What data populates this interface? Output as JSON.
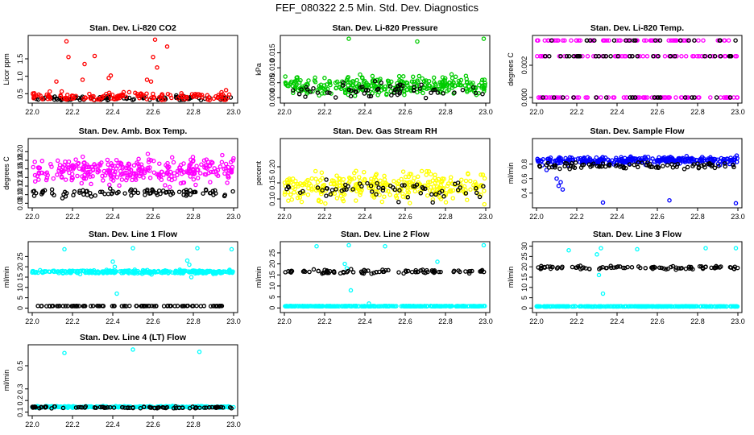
{
  "figure_title": "FEF_080322  2.5 Min. Std. Dev. Diagnostics",
  "colors": {
    "red": "#ff0000",
    "green": "#00cc00",
    "magenta": "#ff00ff",
    "yellow": "#ffff00",
    "blue": "#0000ff",
    "cyan": "#00ffff",
    "black": "#000000"
  },
  "chart_data": [
    {
      "type": "scatter",
      "title": "Stan. Dev. Li-820 CO2",
      "xlabel": "",
      "ylabel": "Licor ppm",
      "xlim": [
        22.0,
        23.0
      ],
      "ylim": [
        0.3,
        2.1
      ],
      "xticks": [
        "22.0",
        "22.2",
        "22.4",
        "22.6",
        "22.8",
        "23.0"
      ],
      "yticks": [
        "0.5",
        "1.0",
        "1.5"
      ],
      "series": [
        {
          "name": "black",
          "color": "#000000",
          "base": 0.36,
          "spread": 0.08,
          "n": 90
        },
        {
          "name": "red",
          "color": "#ff0000",
          "base": 0.42,
          "spread": 0.12,
          "n": 140,
          "outliers": [
            [
              22.17,
              2.0
            ],
            [
              22.18,
              1.55
            ],
            [
              22.26,
              1.35
            ],
            [
              22.31,
              1.58
            ],
            [
              22.39,
              1.02
            ],
            [
              22.6,
              1.55
            ],
            [
              22.61,
              2.05
            ],
            [
              22.62,
              1.25
            ],
            [
              22.67,
              1.85
            ],
            [
              22.38,
              0.95
            ],
            [
              22.12,
              0.85
            ],
            [
              22.25,
              0.9
            ],
            [
              22.57,
              0.9
            ],
            [
              22.59,
              0.85
            ]
          ]
        }
      ]
    },
    {
      "type": "scatter",
      "title": "Stan. Dev. Li-820 Pressure",
      "xlabel": "",
      "ylabel": "kPa",
      "xlim": [
        22.0,
        23.0
      ],
      "ylim": [
        -0.001,
        0.02
      ],
      "xticks": [
        "22.0",
        "22.2",
        "22.4",
        "22.6",
        "22.8",
        "23.0"
      ],
      "yticks": [
        "0.000",
        "0.005",
        "0.010",
        "0.015"
      ],
      "series": [
        {
          "name": "green",
          "color": "#00cc00",
          "base": 0.004,
          "spread": 0.003,
          "n": 300,
          "outliers": [
            [
              22.32,
              0.0197
            ],
            [
              22.66,
              0.0188
            ],
            [
              22.99,
              0.0197
            ]
          ]
        },
        {
          "name": "black",
          "color": "#000000",
          "base": 0.0025,
          "spread": 0.0025,
          "n": 60
        }
      ]
    },
    {
      "type": "scatter",
      "title": "Stan. Dev. Li-820 Temp.",
      "xlabel": "",
      "ylabel": "degrees C",
      "xlim": [
        22.0,
        23.0
      ],
      "ylim": [
        -0.0002,
        0.0037
      ],
      "xticks": [
        "22.0",
        "22.2",
        "22.4",
        "22.6",
        "22.8",
        "23.0"
      ],
      "yticks": [
        "0.000",
        "0.002"
      ],
      "series": [
        {
          "name": "magenta",
          "color": "#ff00ff",
          "levels": [
            0.0,
            0.00256,
            0.00354
          ],
          "n": 220
        },
        {
          "name": "black",
          "color": "#000000",
          "levels": [
            0.0,
            0.00256,
            0.00354
          ],
          "n": 70
        }
      ]
    },
    {
      "type": "scatter",
      "title": "Stan. Dev. Amb. Box Temp.",
      "xlabel": "",
      "ylabel": "degrees C",
      "xlim": [
        22.0,
        23.0
      ],
      "ylim": [
        0.075,
        0.225
      ],
      "xticks": [
        "22.0",
        "22.2",
        "22.4",
        "22.6",
        "22.8",
        "23.0"
      ],
      "yticks": [
        "0.08",
        "0.10",
        "0.12",
        "0.14",
        "0.16",
        "0.18",
        "0.20"
      ],
      "series": [
        {
          "name": "magenta",
          "color": "#ff00ff",
          "base": 0.155,
          "spread": 0.03,
          "n": 320
        },
        {
          "name": "black",
          "color": "#000000",
          "base": 0.105,
          "spread": 0.01,
          "n": 90
        }
      ]
    },
    {
      "type": "scatter",
      "title": "Stan. Dev. Gas Stream RH",
      "xlabel": "",
      "ylabel": "percent",
      "xlim": [
        22.0,
        23.0
      ],
      "ylim": [
        0.08,
        0.28
      ],
      "xticks": [
        "22.0",
        "22.2",
        "22.4",
        "22.6",
        "22.8",
        "23.0"
      ],
      "yticks": [
        "0.10",
        "0.15",
        "0.20"
      ],
      "series": [
        {
          "name": "yellow",
          "color": "#ffff00",
          "base": 0.14,
          "spread": 0.04,
          "n": 320
        },
        {
          "name": "black",
          "color": "#000000",
          "base": 0.13,
          "spread": 0.03,
          "n": 60
        }
      ]
    },
    {
      "type": "scatter",
      "title": "Stan. Dev. Sample Flow",
      "xlabel": "",
      "ylabel": "ml/min",
      "xlim": [
        22.0,
        23.0
      ],
      "ylim": [
        0.23,
        1.12
      ],
      "xticks": [
        "22.0",
        "22.2",
        "22.4",
        "22.6",
        "22.8",
        "23.0"
      ],
      "yticks": [
        "0.4",
        "0.6",
        "0.8"
      ],
      "series": [
        {
          "name": "blue",
          "color": "#0000ff",
          "base": 0.85,
          "spread": 0.05,
          "n": 320,
          "outliers": [
            [
              22.12,
              0.55
            ],
            [
              22.11,
              0.5
            ],
            [
              22.13,
              0.45
            ],
            [
              22.1,
              0.6
            ],
            [
              22.33,
              0.27
            ],
            [
              22.66,
              0.3
            ],
            [
              22.99,
              0.26
            ],
            [
              22.05,
              0.72
            ]
          ]
        },
        {
          "name": "black",
          "color": "#000000",
          "base": 0.78,
          "spread": 0.04,
          "n": 90
        }
      ]
    },
    {
      "type": "scatter",
      "title": "Stan. Dev. Line 1 Flow",
      "xlabel": "",
      "ylabel": "ml/min",
      "xlim": [
        22.0,
        23.0
      ],
      "ylim": [
        -1,
        31
      ],
      "xticks": [
        "22.0",
        "22.2",
        "22.4",
        "22.6",
        "22.8",
        "23.0"
      ],
      "yticks": [
        "0",
        "5",
        "10",
        "15",
        "20",
        "25"
      ],
      "series": [
        {
          "name": "cyan",
          "color": "#00ffff",
          "base": 17.5,
          "spread": 0.8,
          "n": 300,
          "outliers": [
            [
              22.16,
              28.5
            ],
            [
              22.5,
              29.0
            ],
            [
              22.82,
              29.0
            ],
            [
              22.99,
              28.5
            ],
            [
              22.42,
              7.0
            ],
            [
              22.4,
              22.5
            ],
            [
              22.41,
              20.0
            ],
            [
              22.78,
              21.0
            ],
            [
              22.79,
              15.0
            ],
            [
              22.77,
              23.0
            ]
          ]
        },
        {
          "name": "black",
          "color": "#000000",
          "base": 1.0,
          "spread": 0.1,
          "n": 90
        }
      ]
    },
    {
      "type": "scatter",
      "title": "Stan. Dev. Line 2 Flow",
      "xlabel": "",
      "ylabel": "ml/min",
      "xlim": [
        22.0,
        23.0
      ],
      "ylim": [
        -1,
        29
      ],
      "xticks": [
        "22.0",
        "22.2",
        "22.4",
        "22.6",
        "22.8",
        "23.0"
      ],
      "yticks": [
        "0",
        "5",
        "10",
        "15",
        "20",
        "25"
      ],
      "series": [
        {
          "name": "cyan",
          "color": "#00ffff",
          "base": 0.8,
          "spread": 0.1,
          "n": 300,
          "outliers": [
            [
              22.16,
              28.0
            ],
            [
              22.32,
              28.5
            ],
            [
              22.5,
              28.0
            ],
            [
              22.99,
              28.5
            ],
            [
              22.3,
              20.0
            ],
            [
              22.31,
              18.0
            ],
            [
              22.33,
              8.0
            ],
            [
              22.76,
              21.0
            ],
            [
              22.42,
              2.0
            ]
          ]
        },
        {
          "name": "black",
          "color": "#000000",
          "base": 16.5,
          "spread": 0.8,
          "n": 90
        }
      ]
    },
    {
      "type": "scatter",
      "title": "Stan. Dev. Line 3 Flow",
      "xlabel": "",
      "ylabel": "ml/min",
      "xlim": [
        22.0,
        23.0
      ],
      "ylim": [
        -1,
        31
      ],
      "xticks": [
        "22.0",
        "22.2",
        "22.4",
        "22.6",
        "22.8",
        "23.0"
      ],
      "yticks": [
        "0",
        "5",
        "10",
        "15",
        "20",
        "25",
        "30"
      ],
      "series": [
        {
          "name": "black",
          "color": "#000000",
          "base": 19.5,
          "spread": 0.8,
          "n": 90
        },
        {
          "name": "cyan",
          "color": "#00ffff",
          "base": 0.8,
          "spread": 0.1,
          "n": 300,
          "outliers": [
            [
              22.16,
              28.0
            ],
            [
              22.3,
              26.0
            ],
            [
              22.32,
              29.0
            ],
            [
              22.5,
              28.5
            ],
            [
              22.84,
              29.0
            ],
            [
              22.99,
              29.0
            ],
            [
              22.33,
              7.0
            ],
            [
              22.31,
              16.0
            ]
          ]
        }
      ]
    },
    {
      "type": "scatter",
      "title": "Stan. Dev. Line 4 (LT) Flow",
      "xlabel": "",
      "ylabel": "ml/min",
      "xlim": [
        22.0,
        23.0
      ],
      "ylim": [
        0.09,
        0.66
      ],
      "xticks": [
        "22.0",
        "22.2",
        "22.4",
        "22.6",
        "22.8",
        "23.0"
      ],
      "yticks": [
        "0.1",
        "0.2",
        "0.3",
        "0.5"
      ],
      "series": [
        {
          "name": "cyan",
          "color": "#00ffff",
          "base": 0.145,
          "spread": 0.006,
          "n": 300,
          "outliers": [
            [
              22.16,
              0.61
            ],
            [
              22.5,
              0.64
            ],
            [
              22.83,
              0.62
            ]
          ]
        },
        {
          "name": "black",
          "color": "#000000",
          "base": 0.14,
          "spread": 0.008,
          "n": 90
        }
      ]
    }
  ]
}
